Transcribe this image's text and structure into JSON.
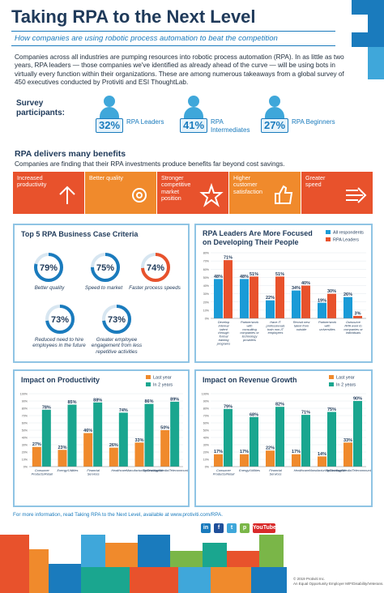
{
  "header": {
    "title": "Taking RPA to the Next Level",
    "subtitle": "How companies are using robotic process automation to beat the competition"
  },
  "intro": "Companies across all industries are pumping resources into robotic process automation (RPA). In as little as two years, RPA leaders — those companies we've identified as already ahead of the curve — will be using bots in virtually every function within their organizations. These are among numerous takeaways from a global survey of 450 executives conducted by Protiviti and ESI ThoughtLab.",
  "survey": {
    "heading": "Survey participants:",
    "participants": [
      {
        "pct": "32%",
        "label": "RPA Leaders"
      },
      {
        "pct": "41%",
        "label": "RPA Intermediates"
      },
      {
        "pct": "27%",
        "label": "RPA Beginners"
      }
    ]
  },
  "benefits": {
    "heading": "RPA delivers many benefits",
    "subheading": "Companies are finding that their RPA investments produce benefits far beyond cost savings.",
    "items": [
      {
        "label": "Increased productivity",
        "color": "#e8522c",
        "icon": "arrow-up-icon"
      },
      {
        "label": "Better quality",
        "color": "#f08a2c",
        "icon": "gear-icon"
      },
      {
        "label": "Stronger competitive market position",
        "color": "#e8522c",
        "icon": "star-icon"
      },
      {
        "label": "Higher customer satisfaction",
        "color": "#f08a2c",
        "icon": "thumbs-up-icon"
      },
      {
        "label": "Greater speed",
        "color": "#e8522c",
        "icon": "speed-arrow-icon"
      }
    ]
  },
  "criteria": {
    "title": "Top 5 RPA Business Case Criteria",
    "items": [
      {
        "value": "79%",
        "label": "Better quality",
        "level": 0.79,
        "color": "#1a7bbd"
      },
      {
        "value": "75%",
        "label": "Speed to market",
        "level": 0.75,
        "color": "#1a7bbd"
      },
      {
        "value": "74%",
        "label": "Faster process speeds",
        "level": 0.74,
        "color": "#e8522c"
      },
      {
        "value": "73%",
        "label": "Reduced need to hire employees in the future",
        "level": 0.73,
        "color": "#1a7bbd"
      },
      {
        "value": "73%",
        "label": "Greater employee engagement from less repetitive activities",
        "level": 0.73,
        "color": "#1a7bbd"
      }
    ]
  },
  "charts": {
    "people": {
      "title": "RPA Leaders Are More Focused on Developing Their People",
      "legend": [
        "All respondents",
        "RPA Leaders"
      ],
      "chart_data": {
        "type": "bar",
        "categories": [
          "Develop internal talent through formal training programs",
          "Partner/work with consulting companies or technology providers",
          "Have IT professionals train non-IT employees",
          "Recruit new talent from outside",
          "Partner/work with universities",
          "Outsource RPA work to companies or individuals"
        ],
        "series": [
          {
            "name": "All respondents",
            "values": [
              48,
              48,
              22,
              34,
              19,
              26
            ],
            "labels": [
              "48%",
              "48%",
              "22%",
              "34%",
              "19%",
              "26%"
            ]
          },
          {
            "name": "RPA Leaders",
            "values": [
              71,
              51,
              51,
              40,
              30,
              3
            ],
            "labels": [
              "71%",
              "51%",
              "51%",
              "40%",
              "30%",
              "3%"
            ]
          }
        ],
        "ylim": [
          0,
          80
        ],
        "ticks": [
          "0%",
          "10%",
          "20%",
          "30%",
          "40%",
          "50%",
          "60%",
          "70%",
          "80%"
        ],
        "colors": [
          "#1a9bd7",
          "#e8522c"
        ]
      }
    },
    "productivity": {
      "title": "Impact on Productivity",
      "legend": [
        "Last year",
        "In 2 years"
      ],
      "chart_data": {
        "type": "bar",
        "categories": [
          "Consumer Products/Retail",
          "Energy/Utilities",
          "Financial Services",
          "Healthcare",
          "Manufacturing/Distribution",
          "Technology/Media/Telecommunications"
        ],
        "series": [
          {
            "name": "Last year",
            "values": [
              27,
              23,
              46,
              26,
              33,
              50
            ],
            "labels": [
              "27%",
              "23%",
              "46%",
              "26%",
              "33%",
              "50%"
            ]
          },
          {
            "name": "In 2 years",
            "values": [
              78,
              85,
              88,
              74,
              86,
              89
            ],
            "labels": [
              "78%",
              "85%",
              "88%",
              "74%",
              "86%",
              "89%"
            ]
          }
        ],
        "ylim": [
          0,
          100
        ],
        "ticks": [
          "0%",
          "10%",
          "20%",
          "30%",
          "40%",
          "50%",
          "60%",
          "70%",
          "80%",
          "90%",
          "100%"
        ],
        "colors": [
          "#f08a2c",
          "#1aa68f"
        ]
      }
    },
    "revenue": {
      "title": "Impact on Revenue Growth",
      "legend": [
        "Last year",
        "In 2 years"
      ],
      "chart_data": {
        "type": "bar",
        "categories": [
          "Consumer Products/Retail",
          "Energy/Utilities",
          "Financial Services",
          "Healthcare",
          "Manufacturing/Distribution",
          "Technology/Media/Telecommunications"
        ],
        "series": [
          {
            "name": "Last year",
            "values": [
              17,
              17,
              22,
              17,
              14,
              33
            ],
            "labels": [
              "17%",
              "17%",
              "22%",
              "17%",
              "14%",
              "33%"
            ]
          },
          {
            "name": "In 2 years",
            "values": [
              79,
              68,
              82,
              71,
              75,
              90
            ],
            "labels": [
              "79%",
              "68%",
              "82%",
              "71%",
              "75%",
              "90%"
            ]
          }
        ],
        "ylim": [
          0,
          100
        ],
        "ticks": [
          "0%",
          "10%",
          "20%",
          "30%",
          "40%",
          "50%",
          "60%",
          "70%",
          "80%",
          "90%",
          "100%"
        ],
        "colors": [
          "#f08a2c",
          "#1aa68f"
        ]
      }
    }
  },
  "footer": {
    "note": "For more information, read Taking RPA to the Next Level, available at www.protiviti.com/RPA.",
    "social": [
      {
        "glyph": "in",
        "color": "#1a7bbd",
        "icon": "linkedin-icon"
      },
      {
        "glyph": "f",
        "color": "#1f4f9a",
        "icon": "facebook-icon"
      },
      {
        "glyph": "t",
        "color": "#3fa7da",
        "icon": "twitter-icon"
      },
      {
        "glyph": "p",
        "color": "#7ab648",
        "icon": "protiviti-icon"
      },
      {
        "glyph": "YouTube",
        "color": "#d92b2b",
        "icon": "youtube-icon"
      }
    ],
    "copyright_1": "© 2019 Protiviti Inc.",
    "copyright_2": "An Equal Opportunity Employer M/F/Disability/Veterans."
  },
  "colors": {
    "navy": "#1f3a5a",
    "blue": "#1a7bbd",
    "orange": "#f08a2c",
    "red": "#e8522c",
    "teal": "#1aa68f"
  }
}
